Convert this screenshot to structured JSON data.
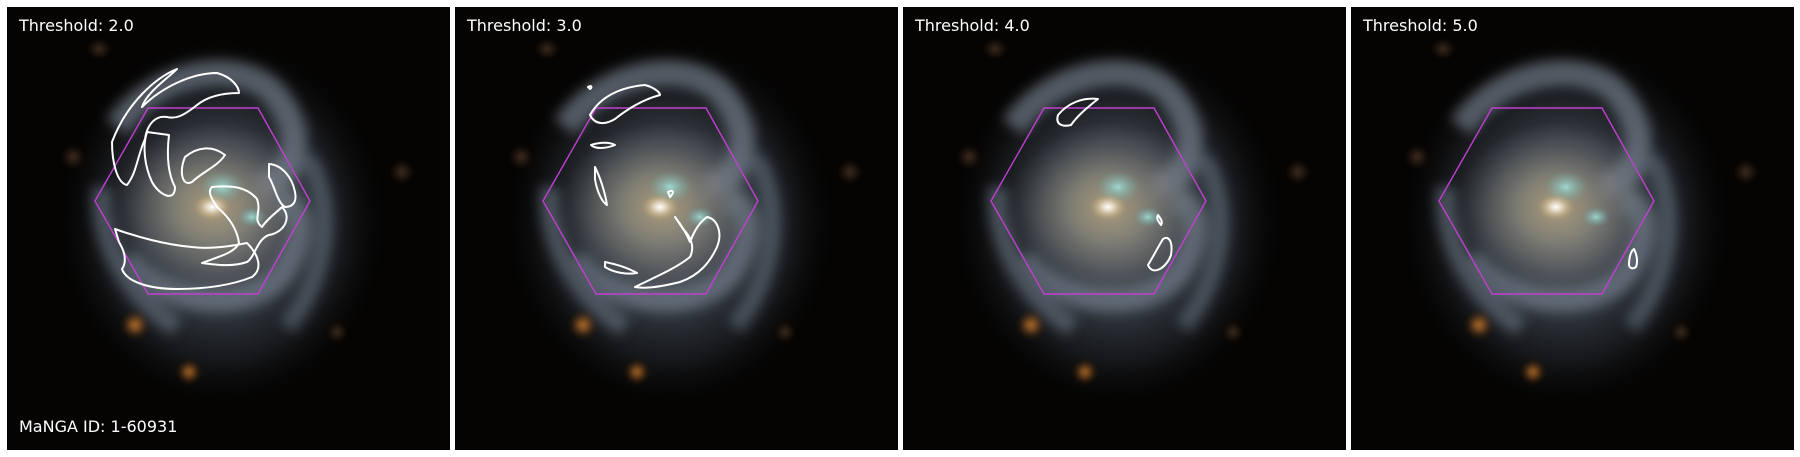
{
  "panels": [
    {
      "threshold_label": "Threshold: 2.0"
    },
    {
      "threshold_label": "Threshold: 3.0"
    },
    {
      "threshold_label": "Threshold: 4.0"
    },
    {
      "threshold_label": "Threshold: 5.0"
    }
  ],
  "manga_id_label": "MaNGA ID: 1-60931",
  "colors": {
    "background": "#050403",
    "hexagon": "#c040d0",
    "contour": "#ffffff",
    "label_text": "#ffffff"
  }
}
